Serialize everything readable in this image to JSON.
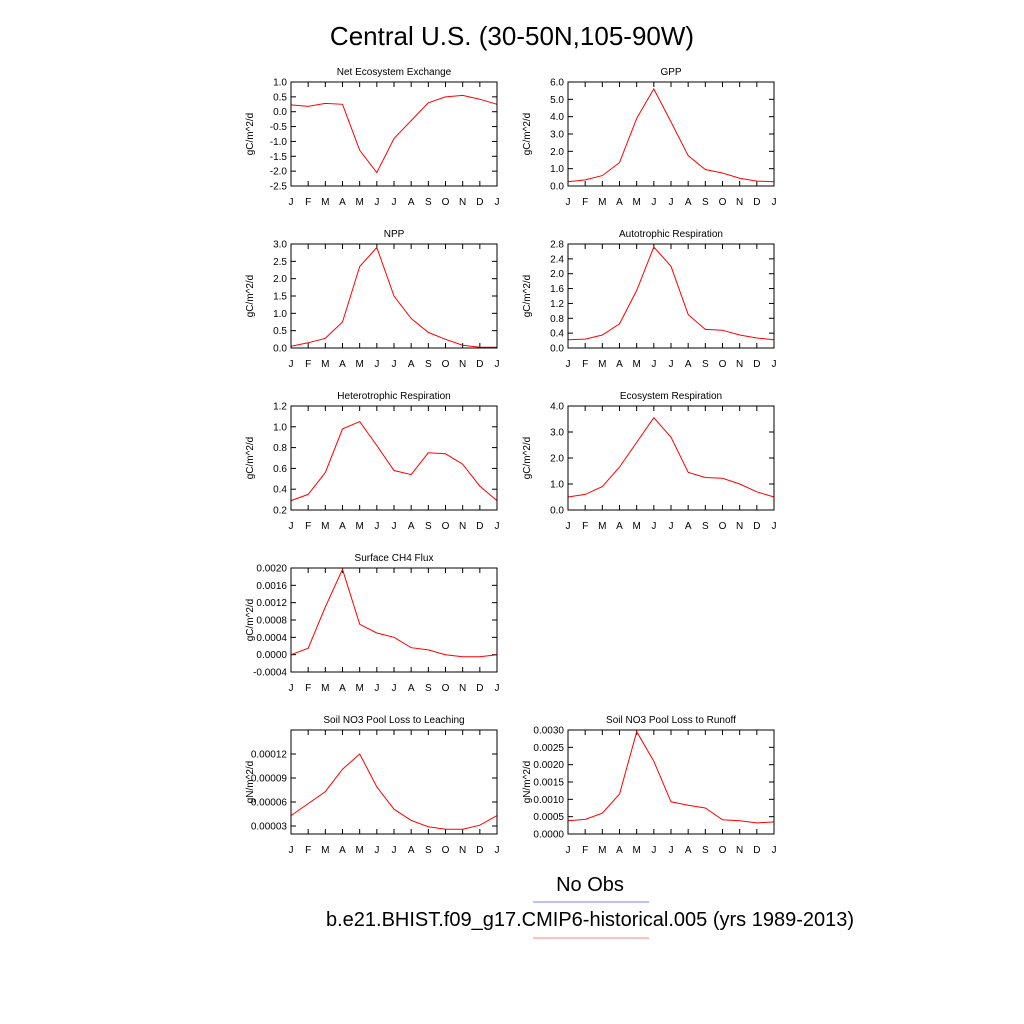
{
  "figure": {
    "title": "Central U.S. (30-50N,105-90W)",
    "legend": [
      {
        "label": "No Obs",
        "color": "#7f7fff"
      },
      {
        "label": "b.e21.BHIST.f09_g17.CMIP6-historical.005 (yrs 1989-2013)",
        "color": "#ff7f7f"
      }
    ]
  },
  "chart_data": [
    {
      "type": "line",
      "title": "Net Ecosystem Exchange",
      "ylabel": "gC/m^2/d",
      "categories": [
        "J",
        "F",
        "M",
        "A",
        "M",
        "J",
        "J",
        "A",
        "S",
        "O",
        "N",
        "D",
        "J"
      ],
      "ylim": [
        -2.5,
        1.0
      ],
      "yticks": [
        "1.0",
        "0.5",
        "0.0",
        "-0.5",
        "-1.0",
        "-1.5",
        "-2.0",
        "-2.5"
      ],
      "series": [
        {
          "color": "#ff0000",
          "values": [
            0.23,
            0.18,
            0.28,
            0.25,
            -1.3,
            -2.05,
            -0.9,
            -0.3,
            0.3,
            0.5,
            0.55,
            0.42,
            0.25
          ]
        }
      ]
    },
    {
      "type": "line",
      "title": "GPP",
      "ylabel": "gC/m^2/d",
      "categories": [
        "J",
        "F",
        "M",
        "A",
        "M",
        "J",
        "J",
        "A",
        "S",
        "O",
        "N",
        "D",
        "J"
      ],
      "ylim": [
        0.0,
        6.0
      ],
      "yticks": [
        "6.0",
        "5.0",
        "4.0",
        "3.0",
        "2.0",
        "1.0",
        "0.0"
      ],
      "series": [
        {
          "color": "#ff0000",
          "values": [
            0.25,
            0.35,
            0.6,
            1.35,
            3.9,
            5.6,
            3.7,
            1.75,
            0.95,
            0.75,
            0.45,
            0.28,
            0.25
          ]
        }
      ]
    },
    {
      "type": "line",
      "title": "NPP",
      "ylabel": "gC/m^2/d",
      "categories": [
        "J",
        "F",
        "M",
        "A",
        "M",
        "J",
        "J",
        "A",
        "S",
        "O",
        "N",
        "D",
        "J"
      ],
      "ylim": [
        0.0,
        3.0
      ],
      "yticks": [
        "3.0",
        "2.5",
        "2.0",
        "1.5",
        "1.0",
        "0.5",
        "0.0"
      ],
      "series": [
        {
          "color": "#ff0000",
          "values": [
            0.05,
            0.15,
            0.28,
            0.75,
            2.35,
            2.9,
            1.5,
            0.85,
            0.45,
            0.25,
            0.08,
            0.02,
            0.02
          ]
        }
      ]
    },
    {
      "type": "line",
      "title": "Autotrophic Respiration",
      "ylabel": "gC/m^2/d",
      "categories": [
        "J",
        "F",
        "M",
        "A",
        "M",
        "J",
        "J",
        "A",
        "S",
        "O",
        "N",
        "D",
        "J"
      ],
      "ylim": [
        0.0,
        2.8
      ],
      "yticks": [
        "2.8",
        "2.4",
        "2.0",
        "1.6",
        "1.2",
        "0.8",
        "0.4",
        "0.0"
      ],
      "series": [
        {
          "color": "#ff0000",
          "values": [
            0.22,
            0.24,
            0.35,
            0.65,
            1.55,
            2.72,
            2.2,
            0.9,
            0.5,
            0.48,
            0.35,
            0.27,
            0.22
          ]
        }
      ]
    },
    {
      "type": "line",
      "title": "Heterotrophic Respiration",
      "ylabel": "gC/m^2/d",
      "categories": [
        "J",
        "F",
        "M",
        "A",
        "M",
        "J",
        "J",
        "A",
        "S",
        "O",
        "N",
        "D",
        "J"
      ],
      "ylim": [
        0.2,
        1.2
      ],
      "yticks": [
        "1.2",
        "1.0",
        "0.8",
        "0.6",
        "0.4",
        "0.2"
      ],
      "series": [
        {
          "color": "#ff0000",
          "values": [
            0.29,
            0.35,
            0.56,
            0.98,
            1.05,
            0.82,
            0.58,
            0.54,
            0.75,
            0.74,
            0.64,
            0.43,
            0.29
          ]
        }
      ]
    },
    {
      "type": "line",
      "title": "Ecosystem Respiration",
      "ylabel": "gC/m^2/d",
      "categories": [
        "J",
        "F",
        "M",
        "A",
        "M",
        "J",
        "J",
        "A",
        "S",
        "O",
        "N",
        "D",
        "J"
      ],
      "ylim": [
        0.0,
        4.0
      ],
      "yticks": [
        "4.0",
        "3.0",
        "2.0",
        "1.0",
        "0.0"
      ],
      "series": [
        {
          "color": "#ff0000",
          "values": [
            0.5,
            0.6,
            0.9,
            1.65,
            2.6,
            3.55,
            2.8,
            1.45,
            1.25,
            1.22,
            1.0,
            0.7,
            0.5
          ]
        }
      ]
    },
    {
      "type": "line",
      "title": "Surface CH4 Flux",
      "ylabel": "gC/m^2/d",
      "categories": [
        "J",
        "F",
        "M",
        "A",
        "M",
        "J",
        "J",
        "A",
        "S",
        "O",
        "N",
        "D",
        "J"
      ],
      "ylim": [
        -0.0004,
        0.002
      ],
      "yticks": [
        "0.0020",
        "0.0016",
        "0.0012",
        "0.0008",
        "0.0004",
        "0.0000",
        "-0.0004"
      ],
      "series": [
        {
          "color": "#ff0000",
          "values": [
            0.0,
            0.00015,
            0.0011,
            0.00197,
            0.0007,
            0.0005,
            0.0004,
            0.00016,
            0.00011,
            0.0,
            -5e-05,
            -5e-05,
            0.0
          ]
        }
      ]
    },
    {
      "type": "line",
      "title": "Soil NO3 Pool Loss to Leaching",
      "ylabel": "gN/m^2/d",
      "categories": [
        "J",
        "F",
        "M",
        "A",
        "M",
        "J",
        "J",
        "A",
        "S",
        "O",
        "N",
        "D",
        "J"
      ],
      "ylim": [
        2e-05,
        0.00015
      ],
      "yticks": [
        "0.00012",
        "0.00009",
        "0.00006",
        "0.00003"
      ],
      "ytick_values": [
        0.00012,
        9e-05,
        6e-05,
        3e-05
      ],
      "series": [
        {
          "color": "#ff0000",
          "values": [
            4.3e-05,
            5.8e-05,
            7.3e-05,
            0.000101,
            0.00012,
            7.9e-05,
            5.1e-05,
            3.7e-05,
            2.9e-05,
            2.6e-05,
            2.6e-05,
            3.1e-05,
            4.3e-05
          ]
        }
      ]
    },
    {
      "type": "line",
      "title": "Soil NO3 Pool Loss to Runoff",
      "ylabel": "gN/m^2/d",
      "categories": [
        "J",
        "F",
        "M",
        "A",
        "M",
        "J",
        "J",
        "A",
        "S",
        "O",
        "N",
        "D",
        "J"
      ],
      "ylim": [
        0.0,
        0.003
      ],
      "yticks": [
        "0.0030",
        "0.0025",
        "0.0020",
        "0.0015",
        "0.0010",
        "0.0005",
        "0.0000"
      ],
      "series": [
        {
          "color": "#ff0000",
          "values": [
            0.00038,
            0.00042,
            0.0006,
            0.00115,
            0.00295,
            0.0021,
            0.00093,
            0.00083,
            0.00075,
            0.00041,
            0.00038,
            0.00032,
            0.00035
          ]
        }
      ]
    }
  ]
}
